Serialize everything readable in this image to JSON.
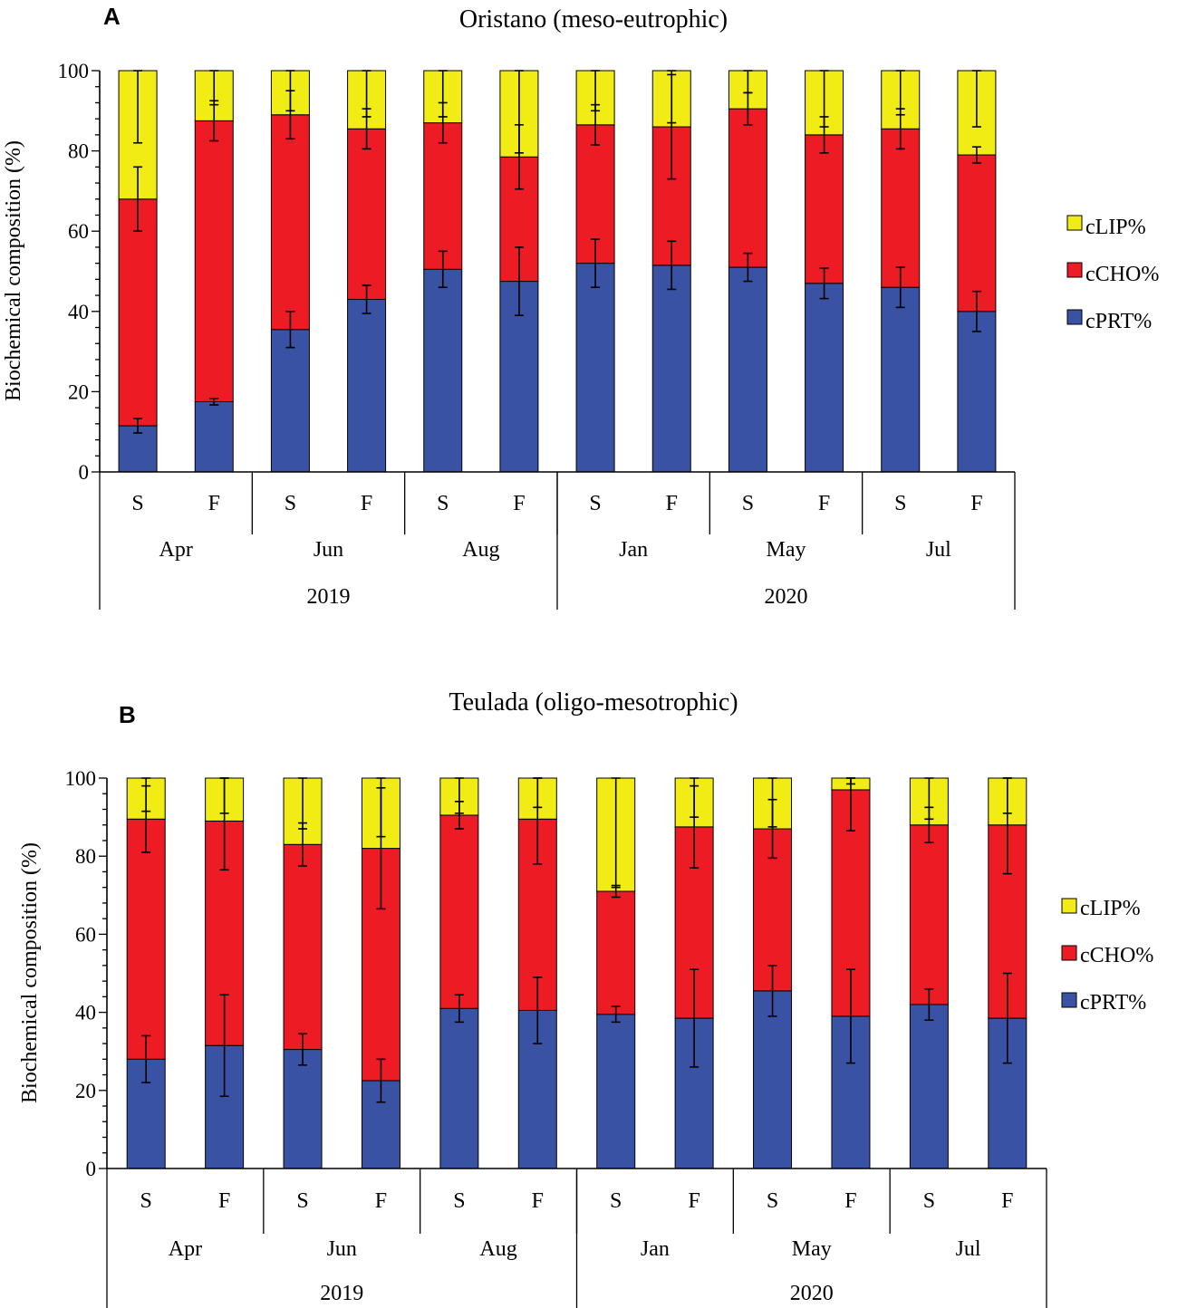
{
  "colors": {
    "cPRT": "#3a52a3",
    "cCHO": "#ed1c24",
    "cLIP": "#f2ec15",
    "axis": "#000000"
  },
  "chart_data": [
    {
      "type": "bar",
      "stacked": true,
      "panel_label": "A",
      "title": "Oristano (meso-eutrophic)",
      "ylabel": "Biochemical  composition  (%)",
      "xlabel": "",
      "ylim": [
        0,
        100
      ],
      "yticks": [
        0,
        20,
        40,
        60,
        80,
        100
      ],
      "categories": [
        "S",
        "F",
        "S",
        "F",
        "S",
        "F",
        "S",
        "F",
        "S",
        "F",
        "S",
        "F"
      ],
      "months": [
        {
          "label": "Apr",
          "span": 2
        },
        {
          "label": "Jun",
          "span": 2
        },
        {
          "label": "Aug",
          "span": 2
        },
        {
          "label": "Jan",
          "span": 2
        },
        {
          "label": "May",
          "span": 2
        },
        {
          "label": "Jul",
          "span": 2
        }
      ],
      "years": [
        {
          "label": "2019",
          "span": 6
        },
        {
          "label": "2020",
          "span": 6
        }
      ],
      "legend": [
        "cLIP%",
        "cCHO%",
        "cPRT%"
      ],
      "legend_position": "right",
      "series": [
        {
          "name": "cPRT%",
          "key": "cPRT",
          "values": [
            11.5,
            17.5,
            35.5,
            43,
            50.5,
            47.5,
            52,
            51.5,
            51,
            47,
            46,
            40
          ],
          "errors": [
            1.8,
            0.8,
            4.5,
            3.5,
            4.5,
            8.5,
            6,
            6,
            3.5,
            3.8,
            5,
            5
          ]
        },
        {
          "name": "cCHO%",
          "key": "cCHO",
          "values": [
            56.5,
            70,
            53.5,
            42.5,
            36.5,
            31,
            34.5,
            34.5,
            39.5,
            37,
            39.5,
            39
          ],
          "errors": [
            8,
            5,
            6,
            5,
            5,
            8,
            5,
            13,
            4,
            4.5,
            5,
            2
          ]
        },
        {
          "name": "cLIP%",
          "key": "cLIP",
          "values": [
            32,
            12.5,
            11,
            14.5,
            13,
            21.5,
            13.5,
            14,
            9.5,
            16,
            14.5,
            21
          ],
          "errors": [
            18,
            8.5,
            10,
            11.5,
            11.5,
            20.5,
            10,
            13,
            5.5,
            14,
            11,
            14
          ]
        }
      ]
    },
    {
      "type": "bar",
      "stacked": true,
      "panel_label": "B",
      "title": "Teulada (oligo-mesotrophic)",
      "ylabel": "Biochemical  composition  (%)",
      "xlabel": "",
      "ylim": [
        0,
        100
      ],
      "yticks": [
        0,
        20,
        40,
        60,
        80,
        100
      ],
      "categories": [
        "S",
        "F",
        "S",
        "F",
        "S",
        "F",
        "S",
        "F",
        "S",
        "F",
        "S",
        "F"
      ],
      "months": [
        {
          "label": "Apr",
          "span": 2
        },
        {
          "label": "Jun",
          "span": 2
        },
        {
          "label": "Aug",
          "span": 2
        },
        {
          "label": "Jan",
          "span": 2
        },
        {
          "label": "May",
          "span": 2
        },
        {
          "label": "Jul",
          "span": 2
        }
      ],
      "years": [
        {
          "label": "2019",
          "span": 6
        },
        {
          "label": "2020",
          "span": 6
        }
      ],
      "legend": [
        "cLIP%",
        "cCHO%",
        "cPRT%"
      ],
      "legend_position": "right",
      "series": [
        {
          "name": "cPRT%",
          "key": "cPRT",
          "values": [
            28,
            31.5,
            30.5,
            22.5,
            41,
            40.5,
            39.5,
            38.5,
            45.5,
            39,
            42,
            38.5
          ],
          "errors": [
            6,
            13,
            4,
            5.5,
            3.5,
            8.5,
            2,
            12.5,
            6.5,
            12,
            4,
            11.5
          ]
        },
        {
          "name": "cCHO%",
          "key": "cCHO",
          "values": [
            61.5,
            57.5,
            52.5,
            59.5,
            49.5,
            49,
            31.5,
            49,
            41.5,
            58,
            46,
            49.5
          ],
          "errors": [
            8.5,
            12.5,
            5.5,
            15.5,
            3.5,
            11.5,
            1.5,
            10.5,
            7.5,
            10.5,
            4.5,
            12.5
          ]
        },
        {
          "name": "cLIP%",
          "key": "cLIP",
          "values": [
            10.5,
            11,
            17,
            18,
            9.5,
            10.5,
            29,
            12.5,
            13,
            3,
            12,
            12
          ],
          "errors": [
            8.5,
            9,
            13,
            15,
            9,
            7.5,
            28,
            10,
            12.5,
            1.5,
            10.5,
            9
          ]
        }
      ]
    }
  ]
}
